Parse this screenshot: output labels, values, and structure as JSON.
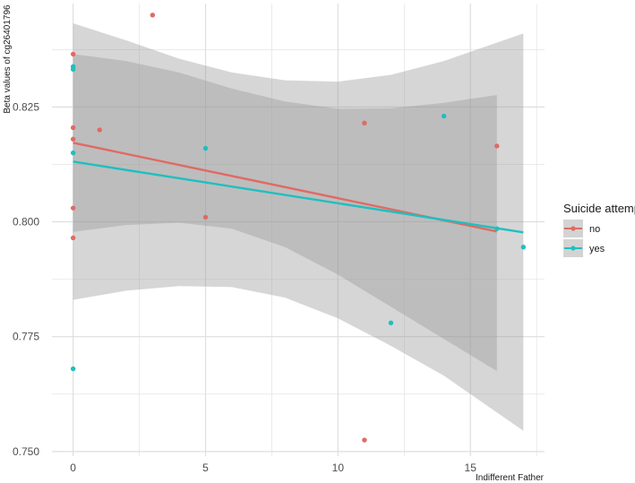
{
  "chart_data": {
    "type": "scatter",
    "title": "",
    "xlabel": "Indifferent Father",
    "ylabel": "Beta values of cg26401796",
    "xlim": [
      -0.8,
      17.8
    ],
    "ylim": [
      0.749,
      0.8475
    ],
    "x_ticks": [
      0,
      5,
      10,
      15
    ],
    "x_tick_labels": [
      "0",
      "5",
      "10",
      "15"
    ],
    "y_ticks": [
      0.75,
      0.775,
      0.8,
      0.825
    ],
    "y_tick_labels": [
      "0.750",
      "0.775",
      "0.800",
      "0.825"
    ],
    "x_minor": [
      2.5,
      7.5,
      12.5,
      17.5
    ],
    "y_minor": [
      0.7625,
      0.7875,
      0.8125,
      0.8375
    ],
    "grid": true,
    "legend": {
      "title": "Suicide attempt",
      "placement": "right",
      "entries": [
        "no",
        "yes"
      ]
    },
    "colors": {
      "no": "#E06A63",
      "yes": "#1FBFC0",
      "band": "#999999",
      "grid": "#dedede"
    },
    "series": [
      {
        "name": "no",
        "color": "#E06A63",
        "points": [
          {
            "x": 0,
            "y": 0.8365
          },
          {
            "x": 0,
            "y": 0.8205
          },
          {
            "x": 0,
            "y": 0.818
          },
          {
            "x": 0,
            "y": 0.803
          },
          {
            "x": 0,
            "y": 0.7965
          },
          {
            "x": 1,
            "y": 0.82
          },
          {
            "x": 3,
            "y": 0.845
          },
          {
            "x": 5,
            "y": 0.801
          },
          {
            "x": 11,
            "y": 0.8215
          },
          {
            "x": 11,
            "y": 0.7525
          },
          {
            "x": 16,
            "y": 0.8165
          }
        ],
        "fit": {
          "x": [
            0,
            16
          ],
          "y": [
            0.8172,
            0.7979
          ]
        },
        "ci": {
          "x": [
            0,
            2,
            4,
            6,
            8,
            10,
            12,
            14,
            16
          ],
          "lower": [
            0.7978,
            0.7993,
            0.7998,
            0.7985,
            0.7945,
            0.7885,
            0.7815,
            0.7745,
            0.7675
          ],
          "upper": [
            0.8365,
            0.835,
            0.8325,
            0.829,
            0.8262,
            0.8246,
            0.8247,
            0.8259,
            0.8276
          ]
        }
      },
      {
        "name": "yes",
        "color": "#1FBFC0",
        "points": [
          {
            "x": 0,
            "y": 0.8338
          },
          {
            "x": 0,
            "y": 0.8332
          },
          {
            "x": 0,
            "y": 0.815
          },
          {
            "x": 0,
            "y": 0.768
          },
          {
            "x": 5,
            "y": 0.816
          },
          {
            "x": 12,
            "y": 0.778
          },
          {
            "x": 14,
            "y": 0.823
          },
          {
            "x": 16,
            "y": 0.7985
          },
          {
            "x": 17,
            "y": 0.7945
          }
        ],
        "fit": {
          "x": [
            0,
            17
          ],
          "y": [
            0.8131,
            0.7977
          ]
        },
        "ci": {
          "x": [
            0,
            2,
            4,
            6,
            8,
            10,
            12,
            14,
            17
          ],
          "lower": [
            0.783,
            0.785,
            0.786,
            0.7858,
            0.7835,
            0.779,
            0.773,
            0.7665,
            0.7545
          ],
          "upper": [
            0.8432,
            0.8395,
            0.8355,
            0.8325,
            0.8308,
            0.8305,
            0.832,
            0.835,
            0.841
          ]
        }
      }
    ]
  }
}
